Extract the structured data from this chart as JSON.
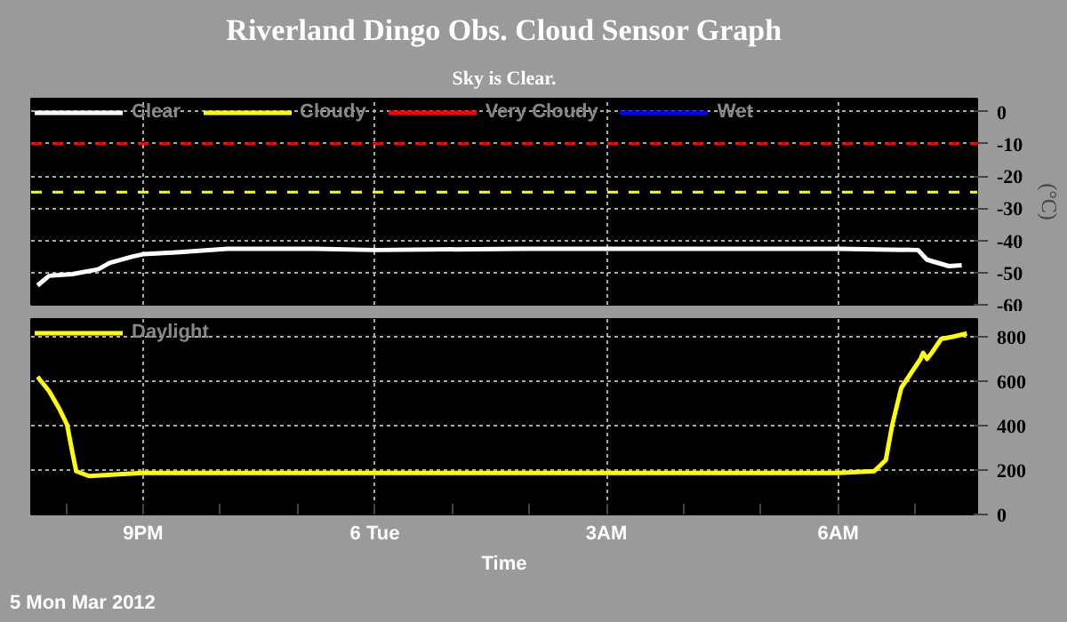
{
  "chart_data": [
    {
      "type": "line",
      "title": "Riverland Dingo Obs. Cloud Sensor Graph",
      "subtitle": "Sky is Clear.",
      "ylabel": "(°C)",
      "tick_labels": "y",
      "grid": true,
      "legend": "top left",
      "xlim": [
        "2012-03-05T19:33",
        "2012-03-06T07:48"
      ],
      "ylim": [
        -60,
        4
      ],
      "xticks": [
        "2012-03-05T21:00",
        "2012-03-06T00:00",
        "2012-03-06T03:00",
        "2012-03-06T06:00"
      ],
      "yticks": [
        0,
        -10,
        -20,
        -30,
        -40,
        -50,
        -60
      ],
      "series": [
        {
          "name": "Clear",
          "color": "#ffffff",
          "x": [
            "2012-03-05T19:38",
            "2012-03-05T19:47",
            "2012-03-05T20:05",
            "2012-03-05T20:25",
            "2012-03-05T20:34",
            "2012-03-05T20:52",
            "2012-03-05T21:00",
            "2012-03-05T21:26",
            "2012-03-05T22:06",
            "2012-03-05T23:14",
            "2012-03-06T00:00",
            "2012-03-06T01:56",
            "2012-03-06T04:11",
            "2012-03-06T06:00",
            "2012-03-06T07:02",
            "2012-03-06T07:09",
            "2012-03-06T07:26",
            "2012-03-06T07:36"
          ],
          "values": [
            -54,
            -51,
            -50.5,
            -49,
            -47,
            -45,
            -44.3,
            -43.7,
            -42.6,
            -42.6,
            -43,
            -42.6,
            -42.6,
            -42.6,
            -43,
            -46,
            -48,
            -47.7
          ]
        },
        {
          "name": "Cloudy",
          "color": "#ffff00"
        },
        {
          "name": "Very Cloudy",
          "color": "#ff0000"
        },
        {
          "name": "Wet",
          "color": "#0000ff"
        }
      ],
      "ref_lines": [
        {
          "axis": "y",
          "value": -10,
          "color": "#ff0000",
          "line_style": "dashed"
        },
        {
          "axis": "y",
          "value": -25,
          "color": "#ffff00",
          "line_style": "dashed"
        }
      ]
    },
    {
      "type": "line",
      "xlabel": "Time",
      "grid": true,
      "legend": "top left",
      "annotations": [
        "5 Mon Mar 2012"
      ],
      "xlim": [
        "2012-03-05T19:33",
        "2012-03-06T07:48"
      ],
      "ylim": [
        0,
        880
      ],
      "xticks": [
        {
          "value": "2012-03-05T20:00",
          "label": null
        },
        {
          "value": "2012-03-05T21:00",
          "label": "9PM"
        },
        {
          "value": "2012-03-05T22:00",
          "label": null
        },
        {
          "value": "2012-03-05T23:00",
          "label": null
        },
        {
          "value": "2012-03-06T00:00",
          "label": "6 Tue"
        },
        {
          "value": "2012-03-06T01:00",
          "label": null
        },
        {
          "value": "2012-03-06T02:00",
          "label": null
        },
        {
          "value": "2012-03-06T03:00",
          "label": "3AM"
        },
        {
          "value": "2012-03-06T04:00",
          "label": null
        },
        {
          "value": "2012-03-06T05:00",
          "label": null
        },
        {
          "value": "2012-03-06T06:00",
          "label": "6AM"
        },
        {
          "value": "2012-03-06T07:00",
          "label": null
        }
      ],
      "yticks": [
        0,
        200,
        400,
        600,
        800
      ],
      "series": [
        {
          "name": "Daylight",
          "color": "#ffff00",
          "x": [
            "2012-03-05T19:38",
            "2012-03-05T19:47",
            "2012-03-05T19:55",
            "2012-03-05T20:01",
            "2012-03-05T20:05",
            "2012-03-05T20:08",
            "2012-03-05T20:18",
            "2012-03-05T20:38",
            "2012-03-05T20:59",
            "2012-03-05T22:33",
            "2012-03-06T00:00",
            "2012-03-06T01:56",
            "2012-03-06T04:11",
            "2012-03-06T06:00",
            "2012-03-06T06:28",
            "2012-03-06T06:37",
            "2012-03-06T06:42",
            "2012-03-06T06:49",
            "2012-03-06T06:57",
            "2012-03-06T07:04",
            "2012-03-06T07:06",
            "2012-03-06T07:09",
            "2012-03-06T07:13",
            "2012-03-06T07:20",
            "2012-03-06T07:29",
            "2012-03-06T07:40"
          ],
          "values": [
            620,
            555,
            475,
            403,
            281,
            195,
            173,
            180,
            187,
            187,
            187,
            187,
            187,
            187,
            195,
            245,
            403,
            570,
            640,
            700,
            728,
            700,
            730,
            790,
            800,
            815
          ]
        }
      ]
    }
  ]
}
